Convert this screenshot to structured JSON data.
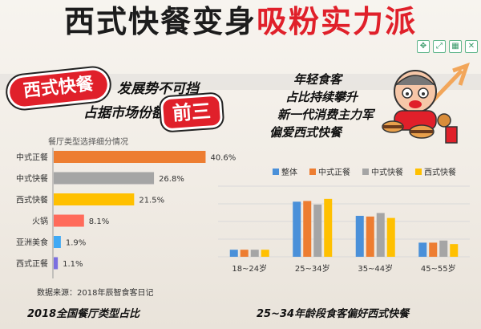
{
  "header": {
    "title_black": "西式快餐变身",
    "title_red": "吸粉实力派"
  },
  "toolbar": {
    "icons": [
      "move-icon",
      "expand-icon",
      "grid-icon",
      "close-icon"
    ]
  },
  "left": {
    "badge": "西式快餐",
    "slogan_line1": "发展势不可挡",
    "slogan_line2": "占据市场份额",
    "badge2": "前三",
    "chart_title": "餐厅类型选择细分情况",
    "source": "数据来源：2018年辰智食客日记",
    "caption": "2018全国餐厅类型占比"
  },
  "right": {
    "lines": [
      "年轻食客",
      "占比持续攀升",
      "新一代消费主力军",
      "偏爱西式快餐"
    ],
    "caption": "25~34年龄段食客偏好西式快餐"
  },
  "colors": {
    "orange": "#ed7d31",
    "gray": "#a5a5a5",
    "gold": "#ffc000",
    "blue": "#4a90d9",
    "red_bar": "#ff6b5b",
    "sky_bar": "#3fa9f5",
    "purple_bar": "#7b6fe0"
  },
  "chart_data": [
    {
      "type": "bar",
      "orientation": "horizontal",
      "title": "餐厅类型选择细分情况",
      "categories": [
        "中式正餐",
        "中式快餐",
        "西式快餐",
        "火锅",
        "亚洲美食",
        "西式正餐"
      ],
      "values": [
        40.6,
        26.8,
        21.5,
        8.1,
        1.9,
        1.1
      ],
      "value_labels": [
        "40.6%",
        "26.8%",
        "21.5%",
        "8.1%",
        "1.9%",
        "1.1%"
      ],
      "bar_colors": [
        "#ed7d31",
        "#a5a5a5",
        "#ffc000",
        "#ff6b5b",
        "#3fa9f5",
        "#7b6fe0"
      ],
      "xlim": [
        0,
        45
      ],
      "grid": false
    },
    {
      "type": "bar",
      "orientation": "vertical",
      "categories": [
        "18~24岁",
        "25~34岁",
        "35~44岁",
        "45~55岁"
      ],
      "series": [
        {
          "name": "整体",
          "color": "#4a90d9",
          "values": [
            10,
            78,
            58,
            20
          ]
        },
        {
          "name": "中式正餐",
          "color": "#ed7d31",
          "values": [
            10,
            79,
            57,
            20
          ]
        },
        {
          "name": "中式快餐",
          "color": "#a5a5a5",
          "values": [
            10,
            74,
            62,
            23
          ]
        },
        {
          "name": "西式快餐",
          "color": "#ffc000",
          "values": [
            10,
            82,
            55,
            18
          ]
        }
      ],
      "ylim": [
        0,
        100
      ],
      "legend": "top",
      "grid": true
    }
  ]
}
